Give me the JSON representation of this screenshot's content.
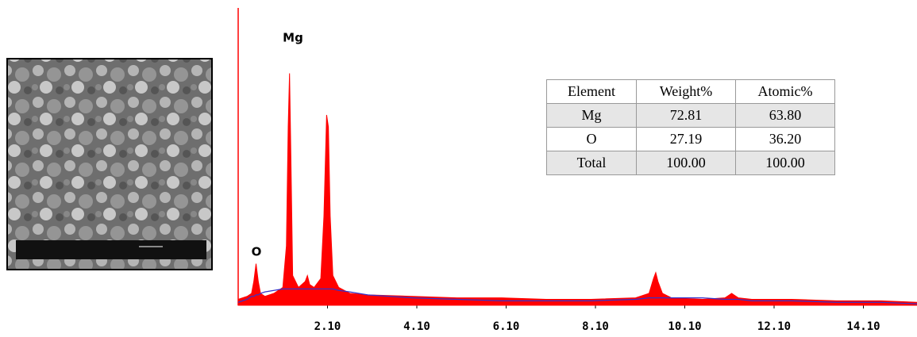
{
  "chart_data": {
    "type": "spectrum",
    "annotations": [
      "O",
      "Mg"
    ],
    "x": [
      0.1,
      0.3,
      0.4,
      0.45,
      0.5,
      0.55,
      0.6,
      0.7,
      0.9,
      1.1,
      1.18,
      1.22,
      1.25,
      1.28,
      1.32,
      1.45,
      1.6,
      1.65,
      1.7,
      1.8,
      1.95,
      2.02,
      2.08,
      2.12,
      2.16,
      2.22,
      2.35,
      2.6,
      3,
      4,
      5,
      6,
      7,
      8,
      9,
      9.3,
      9.4,
      9.45,
      9.5,
      9.6,
      9.8,
      10.5,
      11,
      11.1,
      11.15,
      11.2,
      11.3,
      11.6,
      12.5,
      13.5,
      14.5,
      15.3
    ],
    "series": [
      {
        "color": "#ff0000",
        "values": [
          2,
          3,
          4,
          8,
          14,
          8,
          4,
          3,
          4,
          6,
          20,
          60,
          78,
          50,
          10,
          6,
          8,
          10,
          7,
          6,
          9,
          30,
          64,
          60,
          30,
          10,
          6,
          4,
          3.5,
          3,
          2.5,
          2.5,
          2,
          2,
          2.5,
          4,
          9,
          11,
          8,
          4,
          2.5,
          2,
          2.5,
          3.5,
          4,
          3.5,
          2.5,
          2,
          2,
          1.5,
          1.5,
          1
        ]
      },
      {
        "color": "#3333cc",
        "values": [
          1,
          2,
          3,
          3,
          3.5,
          3.5,
          4,
          4.5,
          5,
          5.5,
          5.5,
          5.5,
          5.5,
          5.5,
          5.5,
          5.5,
          5.5,
          5.5,
          5.5,
          5.5,
          5.5,
          5.5,
          5.5,
          5.5,
          5.5,
          5.5,
          5,
          4.5,
          3.5,
          2.5,
          2,
          1.5,
          1.5,
          1.5,
          2,
          2.5,
          2.5,
          2.5,
          2.5,
          2.5,
          2.5,
          2.5,
          2,
          2,
          2,
          2,
          2,
          1.5,
          1.5,
          1,
          1,
          0.5
        ]
      }
    ],
    "xlim": [
      0.1,
      15.3
    ],
    "ylim": [
      0,
      100
    ],
    "xticks": [
      {
        "value": 2.1,
        "label": "2.10"
      },
      {
        "value": 4.1,
        "label": "4.10"
      },
      {
        "value": 6.1,
        "label": "6.10"
      },
      {
        "value": 8.1,
        "label": "8.10"
      },
      {
        "value": 10.1,
        "label": "10.10"
      },
      {
        "value": 12.1,
        "label": "12.10"
      },
      {
        "value": 14.1,
        "label": "14.10"
      }
    ]
  },
  "table": {
    "header": [
      "Element",
      "Weight%",
      "Atomic%"
    ],
    "rows": [
      [
        "Mg",
        "72.81",
        "63.80"
      ],
      [
        "O",
        "27.19",
        "36.20"
      ],
      [
        "Total",
        "100.00",
        "100.00"
      ]
    ]
  }
}
